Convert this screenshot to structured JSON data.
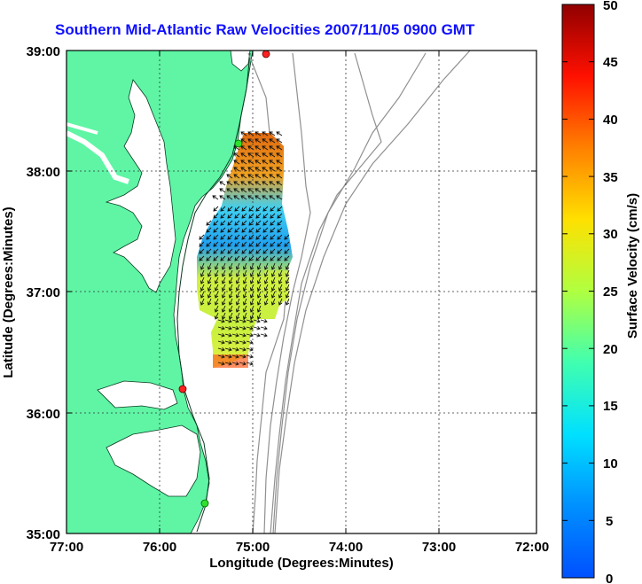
{
  "title": "Southern Mid-Atlantic Raw Velocities 2007/11/05 0900 GMT",
  "map": {
    "xlabel": "Longitude (Degrees:Minutes)",
    "ylabel": "Latitude (Degrees:Minutes)",
    "x_ticks": [
      "77:00",
      "76:00",
      "75:00",
      "74:00",
      "73:00",
      "72:00"
    ],
    "y_ticks": [
      "39:00",
      "38:00",
      "37:00",
      "36:00",
      "35:00"
    ],
    "land_color": "#5ff5a5",
    "bathymetry_color": "#909090"
  },
  "colorbar": {
    "label": "Surface Velocity (cm/s)",
    "min": 0,
    "max": 50,
    "ticks": [
      "50",
      "45",
      "40",
      "35",
      "30",
      "25",
      "20",
      "15",
      "10",
      "5",
      "0"
    ],
    "colormap": "jet"
  },
  "stations": [
    {
      "color": "#ff2020"
    },
    {
      "color": "#30e030"
    },
    {
      "color": "#ff2020"
    },
    {
      "color": "#30e030"
    }
  ]
}
